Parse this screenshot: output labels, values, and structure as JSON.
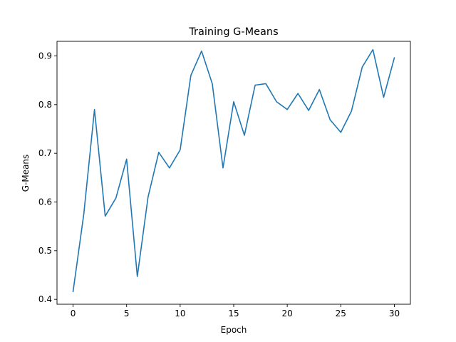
{
  "chart_data": {
    "type": "line",
    "title": "Training G-Means",
    "xlabel": "Epoch",
    "ylabel": "G-Means",
    "xlim": [
      -1.5,
      31.5
    ],
    "ylim": [
      0.39,
      0.93
    ],
    "xticks": [
      0,
      5,
      10,
      15,
      20,
      25,
      30
    ],
    "yticks": [
      0.4,
      0.5,
      0.6,
      0.7,
      0.8,
      0.9
    ],
    "xtick_labels": [
      "0",
      "5",
      "10",
      "15",
      "20",
      "25",
      "30"
    ],
    "ytick_labels": [
      "0.4",
      "0.5",
      "0.6",
      "0.7",
      "0.8",
      "0.9"
    ],
    "grid": false,
    "legend": "none",
    "series": [
      {
        "color": "#1f77b4",
        "x": [
          0,
          1,
          2,
          3,
          4,
          5,
          6,
          7,
          8,
          9,
          10,
          11,
          12,
          13,
          14,
          15,
          16,
          17,
          18,
          19,
          20,
          21,
          22,
          23,
          24,
          25,
          26,
          27,
          28,
          29,
          30
        ],
        "values": [
          0.416,
          0.575,
          0.79,
          0.571,
          0.608,
          0.688,
          0.447,
          0.61,
          0.702,
          0.67,
          0.707,
          0.86,
          0.91,
          0.843,
          0.67,
          0.806,
          0.737,
          0.84,
          0.843,
          0.806,
          0.79,
          0.823,
          0.788,
          0.831,
          0.769,
          0.743,
          0.787,
          0.877,
          0.913,
          0.815,
          0.896
        ]
      }
    ]
  }
}
